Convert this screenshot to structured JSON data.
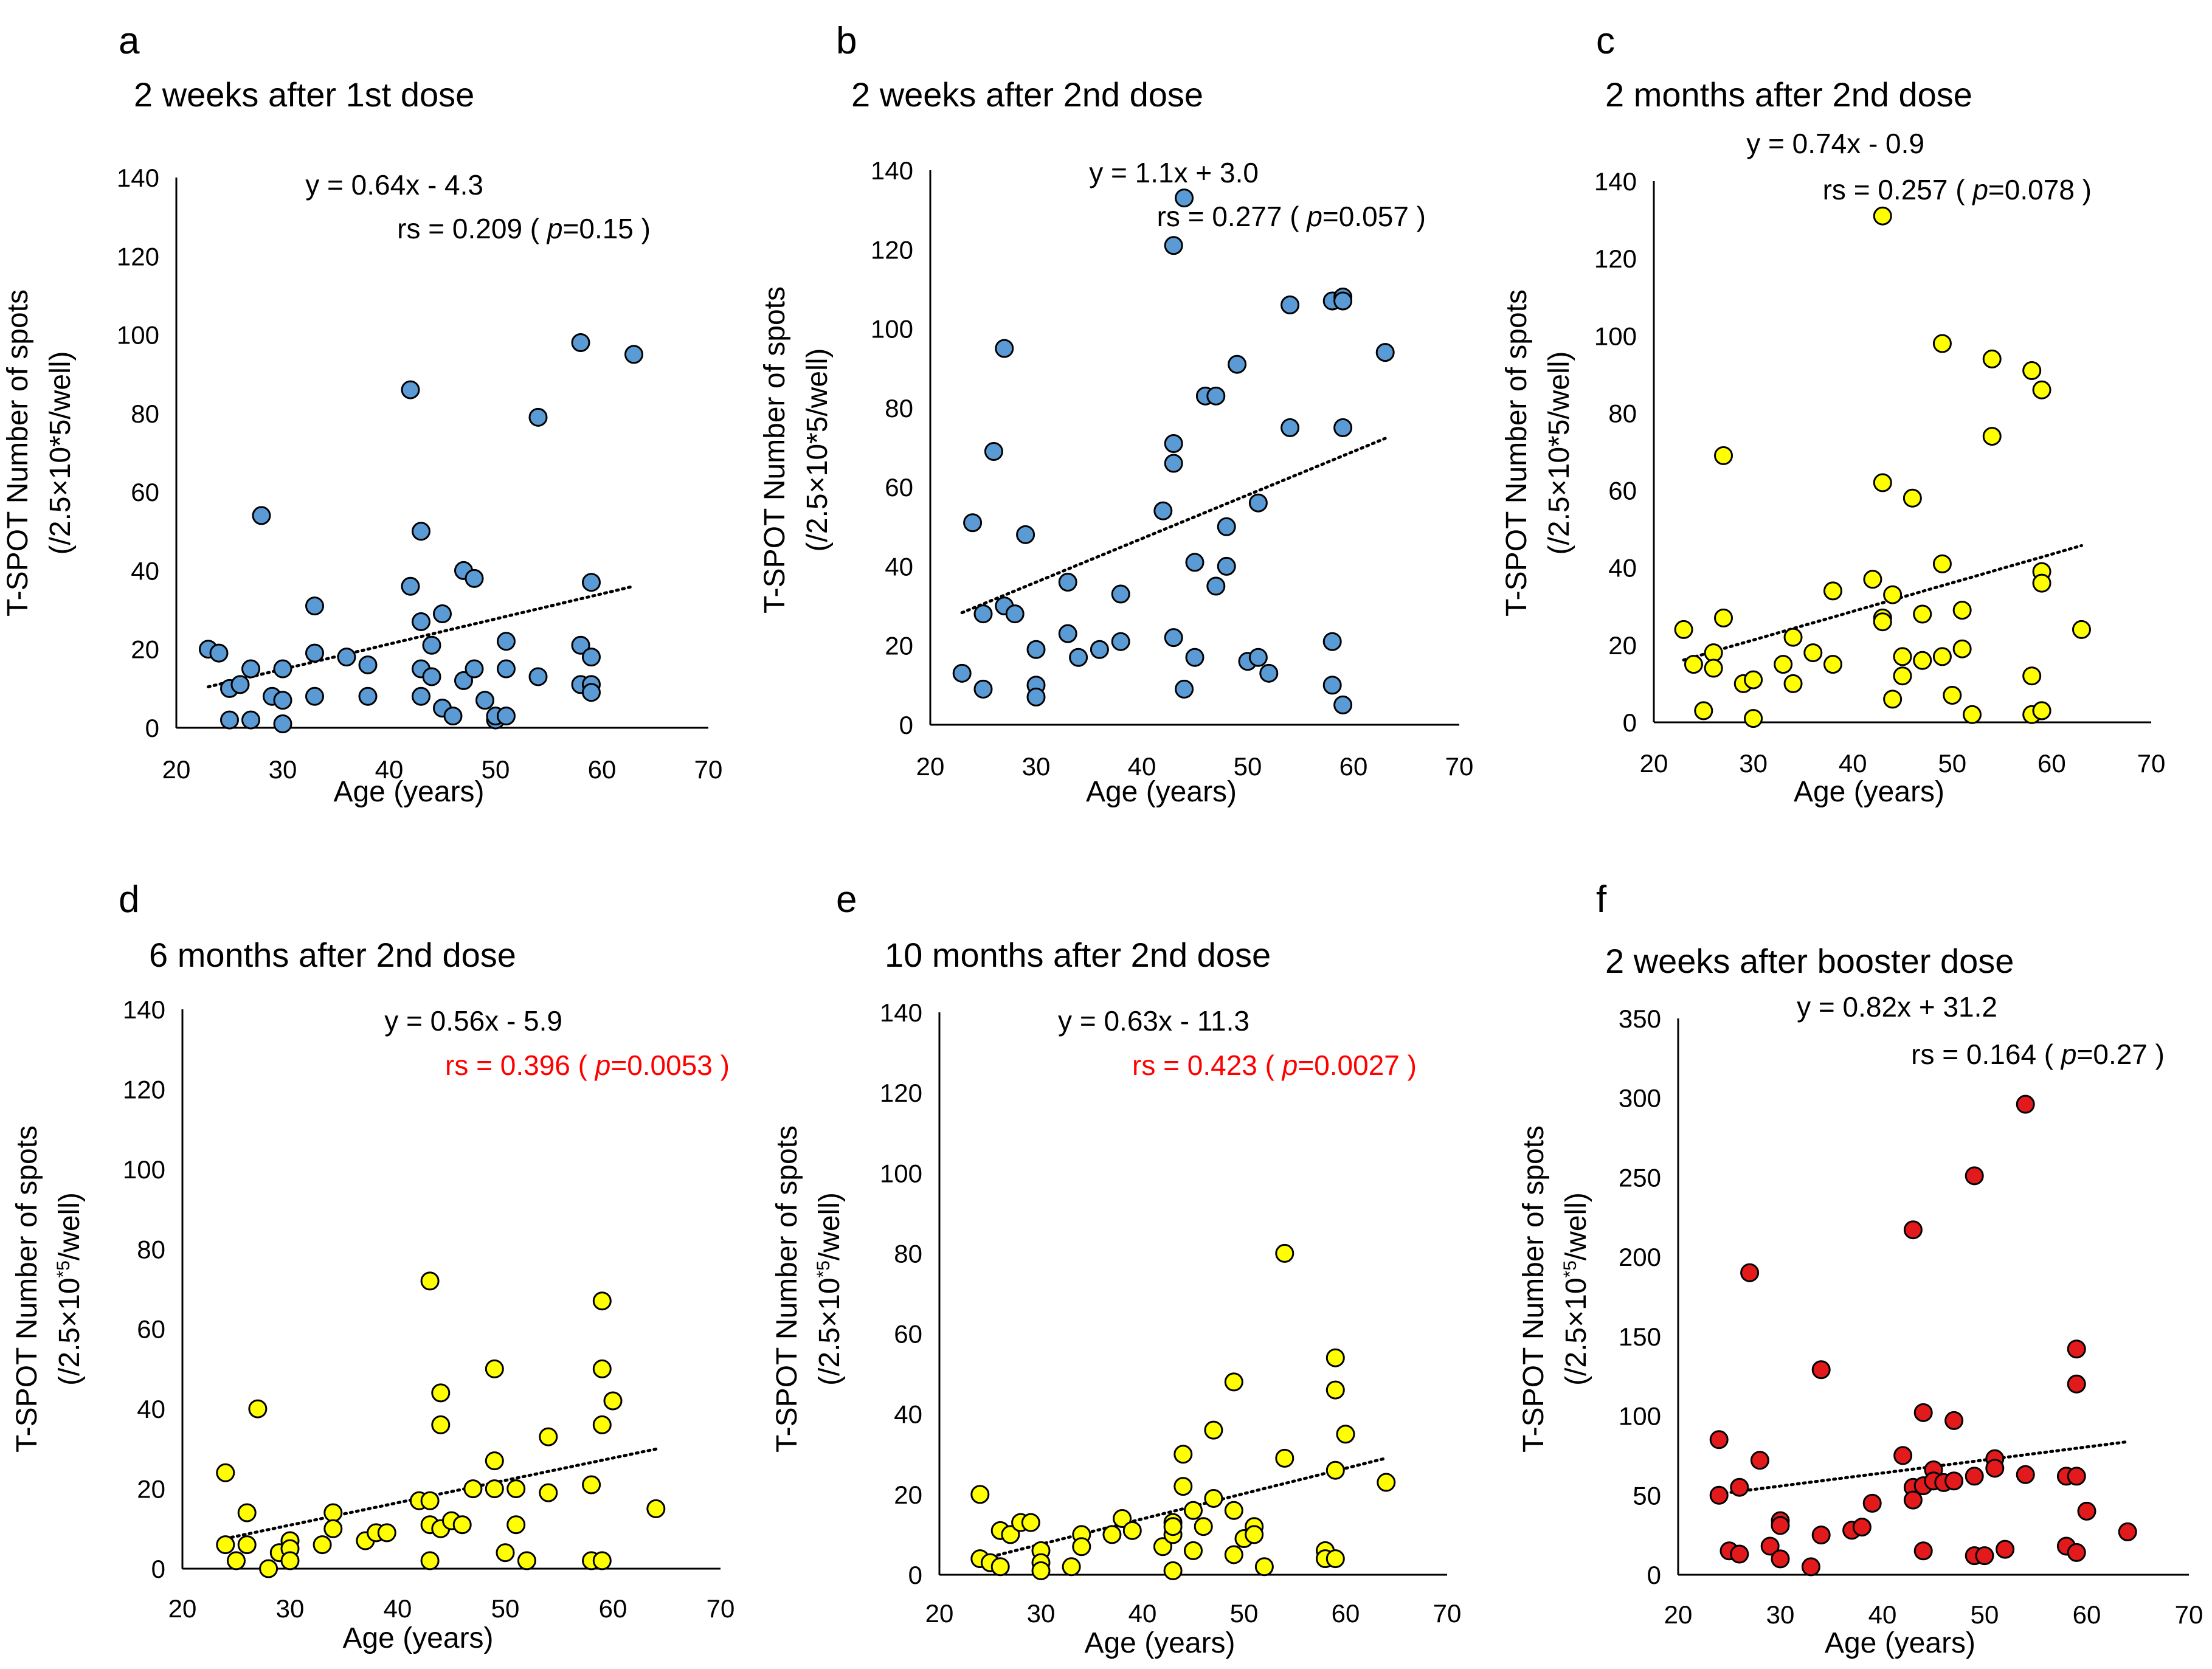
{
  "chart_data": [
    {
      "type": "scatter",
      "panel": "a",
      "title": "2 weeks after 1st dose",
      "xlabel": "Age (years)",
      "ylabel_line1": "T-SPOT Number of spots",
      "ylabel_line2": "(/2.5×10*5/well)",
      "xlim": [
        20,
        70
      ],
      "ylim": [
        0,
        140
      ],
      "xticks": [
        20,
        30,
        40,
        50,
        60,
        70
      ],
      "yticks": [
        0,
        20,
        40,
        60,
        80,
        100,
        120,
        140
      ],
      "equation": "y = 0.64x - 4.3",
      "stat_rs": "rs = 0.209 ( ",
      "stat_p_letter": "p",
      "stat_p_value": "=0.15 )",
      "stat_color": "#000000",
      "marker_color": "#5b9bd5",
      "trend": {
        "slope": 0.64,
        "intercept": -4.3,
        "x_start": 23,
        "x_end": 63
      },
      "x": [
        23,
        24,
        25,
        25,
        26,
        27,
        27,
        28,
        29,
        30,
        30,
        30,
        33,
        33,
        33,
        36,
        38,
        38,
        42,
        42,
        43,
        43,
        43,
        43,
        44,
        44,
        45,
        45,
        46,
        47,
        47,
        48,
        48,
        49,
        50,
        50,
        51,
        51,
        51,
        54,
        54,
        58,
        58,
        58,
        59,
        59,
        59,
        59,
        63
      ],
      "y": [
        20,
        19,
        10,
        2,
        11,
        15,
        2,
        54,
        8,
        15,
        7,
        1,
        31,
        19,
        8,
        18,
        16,
        8,
        86,
        36,
        50,
        27,
        15,
        8,
        21,
        13,
        29,
        5,
        3,
        40,
        12,
        38,
        15,
        7,
        2,
        3,
        22,
        15,
        3,
        79,
        13,
        98,
        21,
        11,
        37,
        18,
        11,
        9,
        95
      ]
    },
    {
      "type": "scatter",
      "panel": "b",
      "title": "2 weeks after 2nd dose",
      "xlabel": "Age (years)",
      "ylabel_line1": "T-SPOT Number of spots",
      "ylabel_line2": "(/2.5×10*5/well)",
      "xlim": [
        20,
        70
      ],
      "ylim": [
        0,
        140
      ],
      "xticks": [
        20,
        30,
        40,
        50,
        60,
        70
      ],
      "yticks": [
        0,
        20,
        40,
        60,
        80,
        100,
        120,
        140
      ],
      "equation": "y = 1.1x + 3.0",
      "stat_rs": "rs = 0.277 ( ",
      "stat_p_letter": "p",
      "stat_p_value": "=0.057 )",
      "stat_color": "#000000",
      "marker_color": "#5b9bd5",
      "trend": {
        "slope": 1.1,
        "intercept": 3.0,
        "x_start": 23,
        "x_end": 63
      },
      "x": [
        23,
        24,
        25,
        25,
        26,
        27,
        27,
        28,
        29,
        30,
        30,
        30,
        33,
        33,
        34,
        36,
        38,
        38,
        42,
        43,
        43,
        43,
        43,
        44,
        44,
        45,
        45,
        46,
        47,
        47,
        48,
        48,
        49,
        50,
        51,
        51,
        52,
        54,
        54,
        58,
        58,
        58,
        59,
        59,
        59,
        59,
        63
      ],
      "y": [
        13,
        51,
        28,
        9,
        69,
        95,
        30,
        28,
        48,
        19,
        10,
        7,
        36,
        23,
        17,
        19,
        33,
        21,
        54,
        121,
        71,
        66,
        22,
        133,
        9,
        41,
        17,
        83,
        83,
        35,
        50,
        40,
        91,
        16,
        56,
        17,
        13,
        106,
        75,
        107,
        21,
        10,
        108,
        107,
        75,
        5,
        94
      ]
    },
    {
      "type": "scatter",
      "panel": "c",
      "title": "2 months after 2nd dose",
      "xlabel": "Age (years)",
      "ylabel_line1": "T-SPOT Number of spots",
      "ylabel_line2": "(/2.5×10*5/well)",
      "xlim": [
        20,
        70
      ],
      "ylim": [
        0,
        140
      ],
      "xticks": [
        20,
        30,
        40,
        50,
        60,
        70
      ],
      "yticks": [
        0,
        20,
        40,
        60,
        80,
        100,
        120,
        140
      ],
      "equation": "y = 0.74x - 0.9",
      "stat_rs": "rs = 0.257 ( ",
      "stat_p_letter": "p",
      "stat_p_value": "=0.078 )",
      "stat_color": "#000000",
      "marker_color": "#ffff00",
      "trend": {
        "slope": 0.74,
        "intercept": -0.9,
        "x_start": 23,
        "x_end": 63
      },
      "x": [
        23,
        24,
        25,
        26,
        26,
        27,
        27,
        29,
        30,
        30,
        33,
        34,
        34,
        36,
        38,
        38,
        42,
        43,
        43,
        43,
        43,
        44,
        44,
        45,
        45,
        46,
        47,
        47,
        49,
        49,
        49,
        50,
        51,
        51,
        52,
        54,
        54,
        58,
        58,
        58,
        59,
        59,
        59,
        59,
        59,
        63
      ],
      "y": [
        24,
        15,
        3,
        18,
        14,
        69,
        27,
        10,
        11,
        1,
        15,
        22,
        10,
        18,
        34,
        15,
        37,
        131,
        62,
        27,
        26,
        33,
        6,
        17,
        12,
        58,
        28,
        16,
        98,
        41,
        17,
        7,
        29,
        19,
        2,
        94,
        74,
        91,
        12,
        2,
        86,
        39,
        36,
        3,
        3,
        24
      ]
    },
    {
      "type": "scatter",
      "panel": "d",
      "title": "6 months after 2nd dose",
      "xlabel": "Age (years)",
      "ylabel_line1": "T-SPOT Number of spots",
      "ylabel_line2": "(/2.5×10",
      "ylabel_sup": "*5",
      "ylabel_line2_end": "/well)",
      "xlim": [
        20,
        70
      ],
      "ylim": [
        0,
        140
      ],
      "xticks": [
        20,
        30,
        40,
        50,
        60,
        70
      ],
      "yticks": [
        0,
        20,
        40,
        60,
        80,
        100,
        120,
        140
      ],
      "equation": "y = 0.56x - 5.9",
      "stat_rs": "rs = 0.396 ( ",
      "stat_p_letter": "p",
      "stat_p_value": "=0.0053 )",
      "stat_color": "#ff0000",
      "marker_color": "#ffff00",
      "trend": {
        "slope": 0.56,
        "intercept": -5.9,
        "x_start": 24,
        "x_end": 64
      },
      "x": [
        24,
        24,
        25,
        26,
        26,
        27,
        28,
        29,
        30,
        30,
        30,
        33,
        34,
        34,
        37,
        38,
        39,
        42,
        43,
        43,
        43,
        43,
        44,
        44,
        44,
        45,
        46,
        47,
        49,
        49,
        49,
        50,
        51,
        51,
        52,
        54,
        54,
        58,
        58,
        59,
        59,
        59,
        59,
        60,
        64
      ],
      "y": [
        24,
        6,
        2,
        14,
        6,
        40,
        0,
        4,
        7,
        5,
        2,
        6,
        14,
        10,
        7,
        9,
        9,
        17,
        72,
        17,
        11,
        2,
        44,
        36,
        10,
        12,
        11,
        20,
        50,
        27,
        20,
        4,
        20,
        11,
        2,
        33,
        19,
        21,
        2,
        67,
        50,
        36,
        2,
        42,
        15
      ]
    },
    {
      "type": "scatter",
      "panel": "e",
      "title": "10 months after 2nd dose",
      "xlabel": "Age (years)",
      "ylabel_line1": "T-SPOT Number of spots",
      "ylabel_line2": "(/2.5×10",
      "ylabel_sup": "*5",
      "ylabel_line2_end": "/well)",
      "xlim": [
        20,
        70
      ],
      "ylim": [
        0,
        140
      ],
      "xticks": [
        20,
        30,
        40,
        50,
        60,
        70
      ],
      "yticks": [
        0,
        20,
        40,
        60,
        80,
        100,
        120,
        140
      ],
      "equation": "y = 0.63x - 11.3",
      "stat_rs": "rs = 0.423 ( ",
      "stat_p_letter": "p",
      "stat_p_value": "=0.0027 )",
      "stat_color": "#ff0000",
      "marker_color": "#ffff00",
      "trend": {
        "slope": 0.63,
        "intercept": -11.3,
        "x_start": 24,
        "x_end": 64
      },
      "x": [
        24,
        24,
        25,
        26,
        26,
        27,
        28,
        29,
        30,
        30,
        30,
        33,
        34,
        34,
        37,
        38,
        39,
        42,
        43,
        43,
        43,
        43,
        44,
        44,
        45,
        45,
        46,
        47,
        47,
        49,
        49,
        49,
        50,
        51,
        51,
        52,
        54,
        54,
        58,
        58,
        59,
        59,
        59,
        59,
        60,
        64
      ],
      "y": [
        20,
        4,
        3,
        11,
        2,
        10,
        13,
        13,
        6,
        3,
        1,
        2,
        10,
        7,
        10,
        14,
        11,
        7,
        13,
        10,
        1,
        12,
        30,
        22,
        16,
        6,
        12,
        36,
        19,
        48,
        16,
        5,
        9,
        12,
        10,
        2,
        80,
        29,
        6,
        4,
        54,
        46,
        26,
        4,
        35,
        23
      ]
    },
    {
      "type": "scatter",
      "panel": "f",
      "title": "2 weeks after booster dose",
      "xlabel": "Age (years)",
      "ylabel_line1": "T-SPOT Number of spots",
      "ylabel_line2": "(/2.5×10",
      "ylabel_sup": "*5",
      "ylabel_line2_end": "/well)",
      "xlim": [
        20,
        70
      ],
      "ylim": [
        0,
        350
      ],
      "xticks": [
        20,
        30,
        40,
        50,
        60,
        70
      ],
      "yticks": [
        0,
        50,
        100,
        150,
        200,
        250,
        300,
        350
      ],
      "equation": "y = 0.82x + 31.2",
      "stat_rs": "rs = 0.164 ( ",
      "stat_p_letter": "p",
      "stat_p_value": "=0.27 )",
      "stat_color": "#000000",
      "marker_color": "#e31a1c",
      "trend": {
        "slope": 0.82,
        "intercept": 31.2,
        "x_start": 24,
        "x_end": 64
      },
      "x": [
        24,
        24,
        25,
        26,
        26,
        27,
        28,
        29,
        30,
        30,
        30,
        33,
        34,
        34,
        37,
        38,
        39,
        42,
        43,
        43,
        43,
        44,
        44,
        44,
        45,
        45,
        46,
        47,
        47,
        49,
        49,
        49,
        50,
        51,
        51,
        52,
        54,
        54,
        58,
        58,
        59,
        59,
        59,
        59,
        60,
        64
      ],
      "y": [
        85,
        50,
        15,
        55,
        13,
        190,
        72,
        18,
        34,
        31,
        10,
        5,
        129,
        25,
        28,
        30,
        45,
        75,
        217,
        55,
        47,
        102,
        15,
        56,
        66,
        59,
        58,
        97,
        59,
        251,
        62,
        12,
        12,
        73,
        67,
        16,
        296,
        63,
        62,
        18,
        142,
        120,
        62,
        14,
        40,
        27
      ]
    }
  ]
}
